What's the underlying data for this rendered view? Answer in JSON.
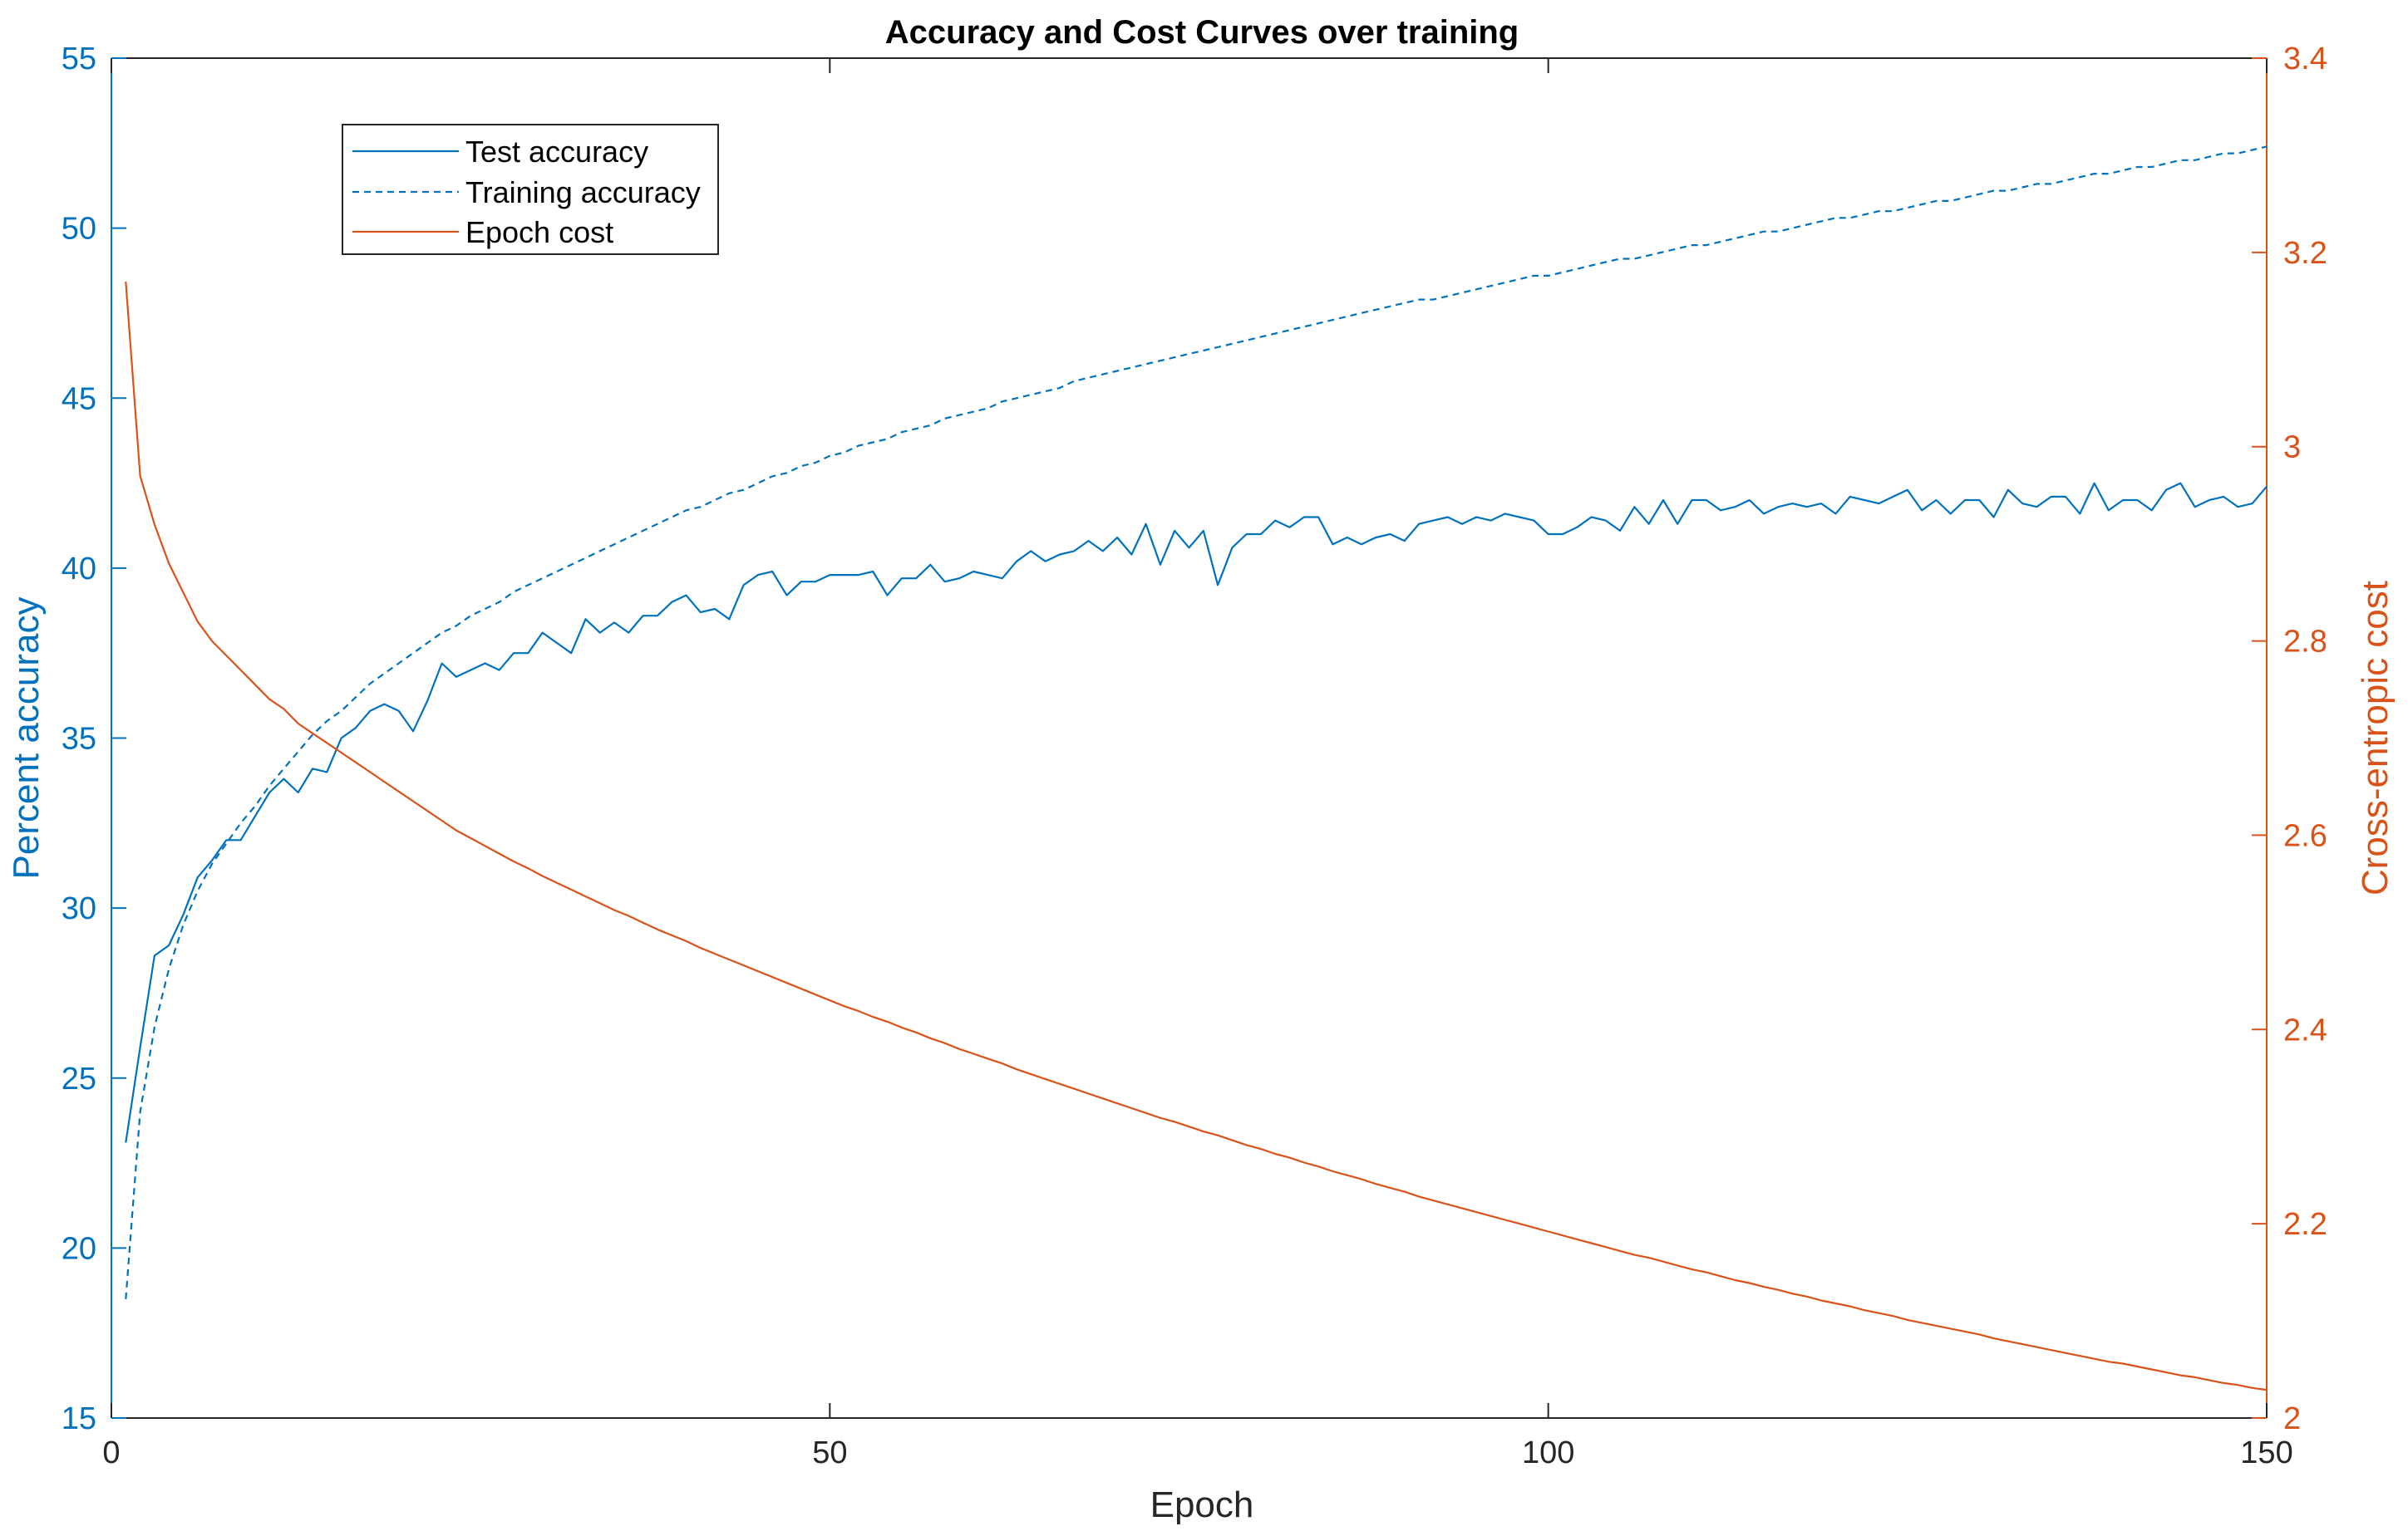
{
  "chart_data": {
    "type": "line",
    "title": "Accuracy and Cost Curves over training",
    "xlabel": "Epoch",
    "ylabel_left": "Percent accuracy",
    "ylabel_right": "Cross-entropic cost",
    "xlim": [
      0,
      150
    ],
    "ylim_left": [
      15,
      55
    ],
    "ylim_right": [
      2.0,
      3.4
    ],
    "xticks": [
      0,
      50,
      100,
      150
    ],
    "xtick_labels": [
      "0",
      "50",
      "100",
      "150"
    ],
    "yticks_left": [
      15,
      20,
      25,
      30,
      35,
      40,
      45,
      50,
      55
    ],
    "ytick_labels_left": [
      "15",
      "20",
      "25",
      "30",
      "35",
      "40",
      "45",
      "50",
      "55"
    ],
    "yticks_right": [
      2.0,
      2.2,
      2.4,
      2.6,
      2.8,
      3.0,
      3.2,
      3.4
    ],
    "ytick_labels_right": [
      "2",
      "2.2",
      "2.4",
      "2.6",
      "2.8",
      "3",
      "3.2",
      "3.4"
    ],
    "grid": false,
    "legend_position": "top-left",
    "colors": {
      "left_axis": "#0072BD",
      "right_axis": "#D95319",
      "frame": "#262626"
    },
    "series": [
      {
        "name": "Test accuracy",
        "axis": "left",
        "style": "solid",
        "color": "#0072BD",
        "x_start": 1,
        "values": [
          23.1,
          25.9,
          28.6,
          28.9,
          29.8,
          30.9,
          31.4,
          32.0,
          32.0,
          32.7,
          33.4,
          33.8,
          33.4,
          34.1,
          34.0,
          35.0,
          35.3,
          35.8,
          36.0,
          35.8,
          35.2,
          36.1,
          37.2,
          36.8,
          37.0,
          37.2,
          37.0,
          37.5,
          37.5,
          38.1,
          37.8,
          37.5,
          38.5,
          38.1,
          38.4,
          38.1,
          38.6,
          38.6,
          39.0,
          39.2,
          38.7,
          38.8,
          38.5,
          39.5,
          39.8,
          39.9,
          39.2,
          39.6,
          39.6,
          39.8,
          39.8,
          39.8,
          39.9,
          39.2,
          39.7,
          39.7,
          40.1,
          39.6,
          39.7,
          39.9,
          39.8,
          39.7,
          40.2,
          40.5,
          40.2,
          40.4,
          40.5,
          40.8,
          40.5,
          40.9,
          40.4,
          41.3,
          40.1,
          41.1,
          40.6,
          41.1,
          39.5,
          40.6,
          41.0,
          41.0,
          41.4,
          41.2,
          41.5,
          41.5,
          40.7,
          40.9,
          40.7,
          40.9,
          41.0,
          40.8,
          41.3,
          41.4,
          41.5,
          41.3,
          41.5,
          41.4,
          41.6,
          41.5,
          41.4,
          41.0,
          41.0,
          41.2,
          41.5,
          41.4,
          41.1,
          41.8,
          41.3,
          42.0,
          41.3,
          42.0,
          42.0,
          41.7,
          41.8,
          42.0,
          41.6,
          41.8,
          41.9,
          41.8,
          41.9,
          41.6,
          42.1,
          42.0,
          41.9,
          42.1,
          42.3,
          41.7,
          42.0,
          41.6,
          42.0,
          42.0,
          41.5,
          42.3,
          41.9,
          41.8,
          42.1,
          42.1,
          41.6,
          42.5,
          41.7,
          42.0,
          42.0,
          41.7,
          42.3,
          42.5,
          41.8,
          42.0,
          42.1,
          41.8,
          41.9,
          42.4
        ]
      },
      {
        "name": "Training accuracy",
        "axis": "left",
        "style": "dashed",
        "color": "#0072BD",
        "x_start": 1,
        "values": [
          18.5,
          24.0,
          26.5,
          28.2,
          29.5,
          30.5,
          31.3,
          31.9,
          32.5,
          33.0,
          33.6,
          34.1,
          34.6,
          35.1,
          35.5,
          35.8,
          36.2,
          36.6,
          36.9,
          37.2,
          37.5,
          37.8,
          38.1,
          38.3,
          38.6,
          38.8,
          39.0,
          39.3,
          39.5,
          39.7,
          39.9,
          40.1,
          40.3,
          40.5,
          40.7,
          40.9,
          41.1,
          41.3,
          41.5,
          41.7,
          41.8,
          42.0,
          42.2,
          42.3,
          42.5,
          42.7,
          42.8,
          43.0,
          43.1,
          43.3,
          43.4,
          43.6,
          43.7,
          43.8,
          44.0,
          44.1,
          44.2,
          44.4,
          44.5,
          44.6,
          44.7,
          44.9,
          45.0,
          45.1,
          45.2,
          45.3,
          45.5,
          45.6,
          45.7,
          45.8,
          45.9,
          46.0,
          46.1,
          46.2,
          46.3,
          46.4,
          46.5,
          46.6,
          46.7,
          46.8,
          46.9,
          47.0,
          47.1,
          47.2,
          47.3,
          47.4,
          47.5,
          47.6,
          47.7,
          47.8,
          47.9,
          47.9,
          48.0,
          48.1,
          48.2,
          48.3,
          48.4,
          48.5,
          48.6,
          48.6,
          48.7,
          48.8,
          48.9,
          49.0,
          49.1,
          49.1,
          49.2,
          49.3,
          49.4,
          49.5,
          49.5,
          49.6,
          49.7,
          49.8,
          49.9,
          49.9,
          50.0,
          50.1,
          50.2,
          50.3,
          50.3,
          50.4,
          50.5,
          50.5,
          50.6,
          50.7,
          50.8,
          50.8,
          50.9,
          51.0,
          51.1,
          51.1,
          51.2,
          51.3,
          51.3,
          51.4,
          51.5,
          51.6,
          51.6,
          51.7,
          51.8,
          51.8,
          51.9,
          52.0,
          52.0,
          52.1,
          52.2,
          52.2,
          52.3,
          52.4
        ]
      },
      {
        "name": "Epoch cost",
        "axis": "right",
        "style": "solid",
        "color": "#D95319",
        "x_start": 1,
        "values": [
          3.17,
          2.97,
          2.92,
          2.88,
          2.85,
          2.82,
          2.8,
          2.785,
          2.77,
          2.755,
          2.74,
          2.73,
          2.715,
          2.705,
          2.695,
          2.685,
          2.675,
          2.665,
          2.655,
          2.645,
          2.635,
          2.625,
          2.615,
          2.605,
          2.597,
          2.589,
          2.581,
          2.573,
          2.566,
          2.558,
          2.551,
          2.544,
          2.537,
          2.53,
          2.523,
          2.517,
          2.51,
          2.503,
          2.497,
          2.491,
          2.484,
          2.478,
          2.472,
          2.466,
          2.46,
          2.454,
          2.448,
          2.442,
          2.436,
          2.43,
          2.424,
          2.419,
          2.413,
          2.408,
          2.402,
          2.397,
          2.391,
          2.386,
          2.38,
          2.375,
          2.37,
          2.365,
          2.359,
          2.354,
          2.349,
          2.344,
          2.339,
          2.334,
          2.329,
          2.324,
          2.319,
          2.314,
          2.309,
          2.305,
          2.3,
          2.295,
          2.291,
          2.286,
          2.281,
          2.277,
          2.272,
          2.268,
          2.263,
          2.259,
          2.254,
          2.25,
          2.246,
          2.241,
          2.237,
          2.233,
          2.228,
          2.224,
          2.22,
          2.216,
          2.212,
          2.208,
          2.204,
          2.2,
          2.196,
          2.192,
          2.188,
          2.184,
          2.18,
          2.176,
          2.172,
          2.168,
          2.165,
          2.161,
          2.157,
          2.153,
          2.15,
          2.146,
          2.142,
          2.139,
          2.135,
          2.132,
          2.128,
          2.125,
          2.121,
          2.118,
          2.115,
          2.111,
          2.108,
          2.105,
          2.101,
          2.098,
          2.095,
          2.092,
          2.089,
          2.086,
          2.082,
          2.079,
          2.076,
          2.073,
          2.07,
          2.067,
          2.064,
          2.061,
          2.058,
          2.056,
          2.053,
          2.05,
          2.047,
          2.044,
          2.042,
          2.039,
          2.036,
          2.034,
          2.031,
          2.029
        ]
      }
    ]
  }
}
